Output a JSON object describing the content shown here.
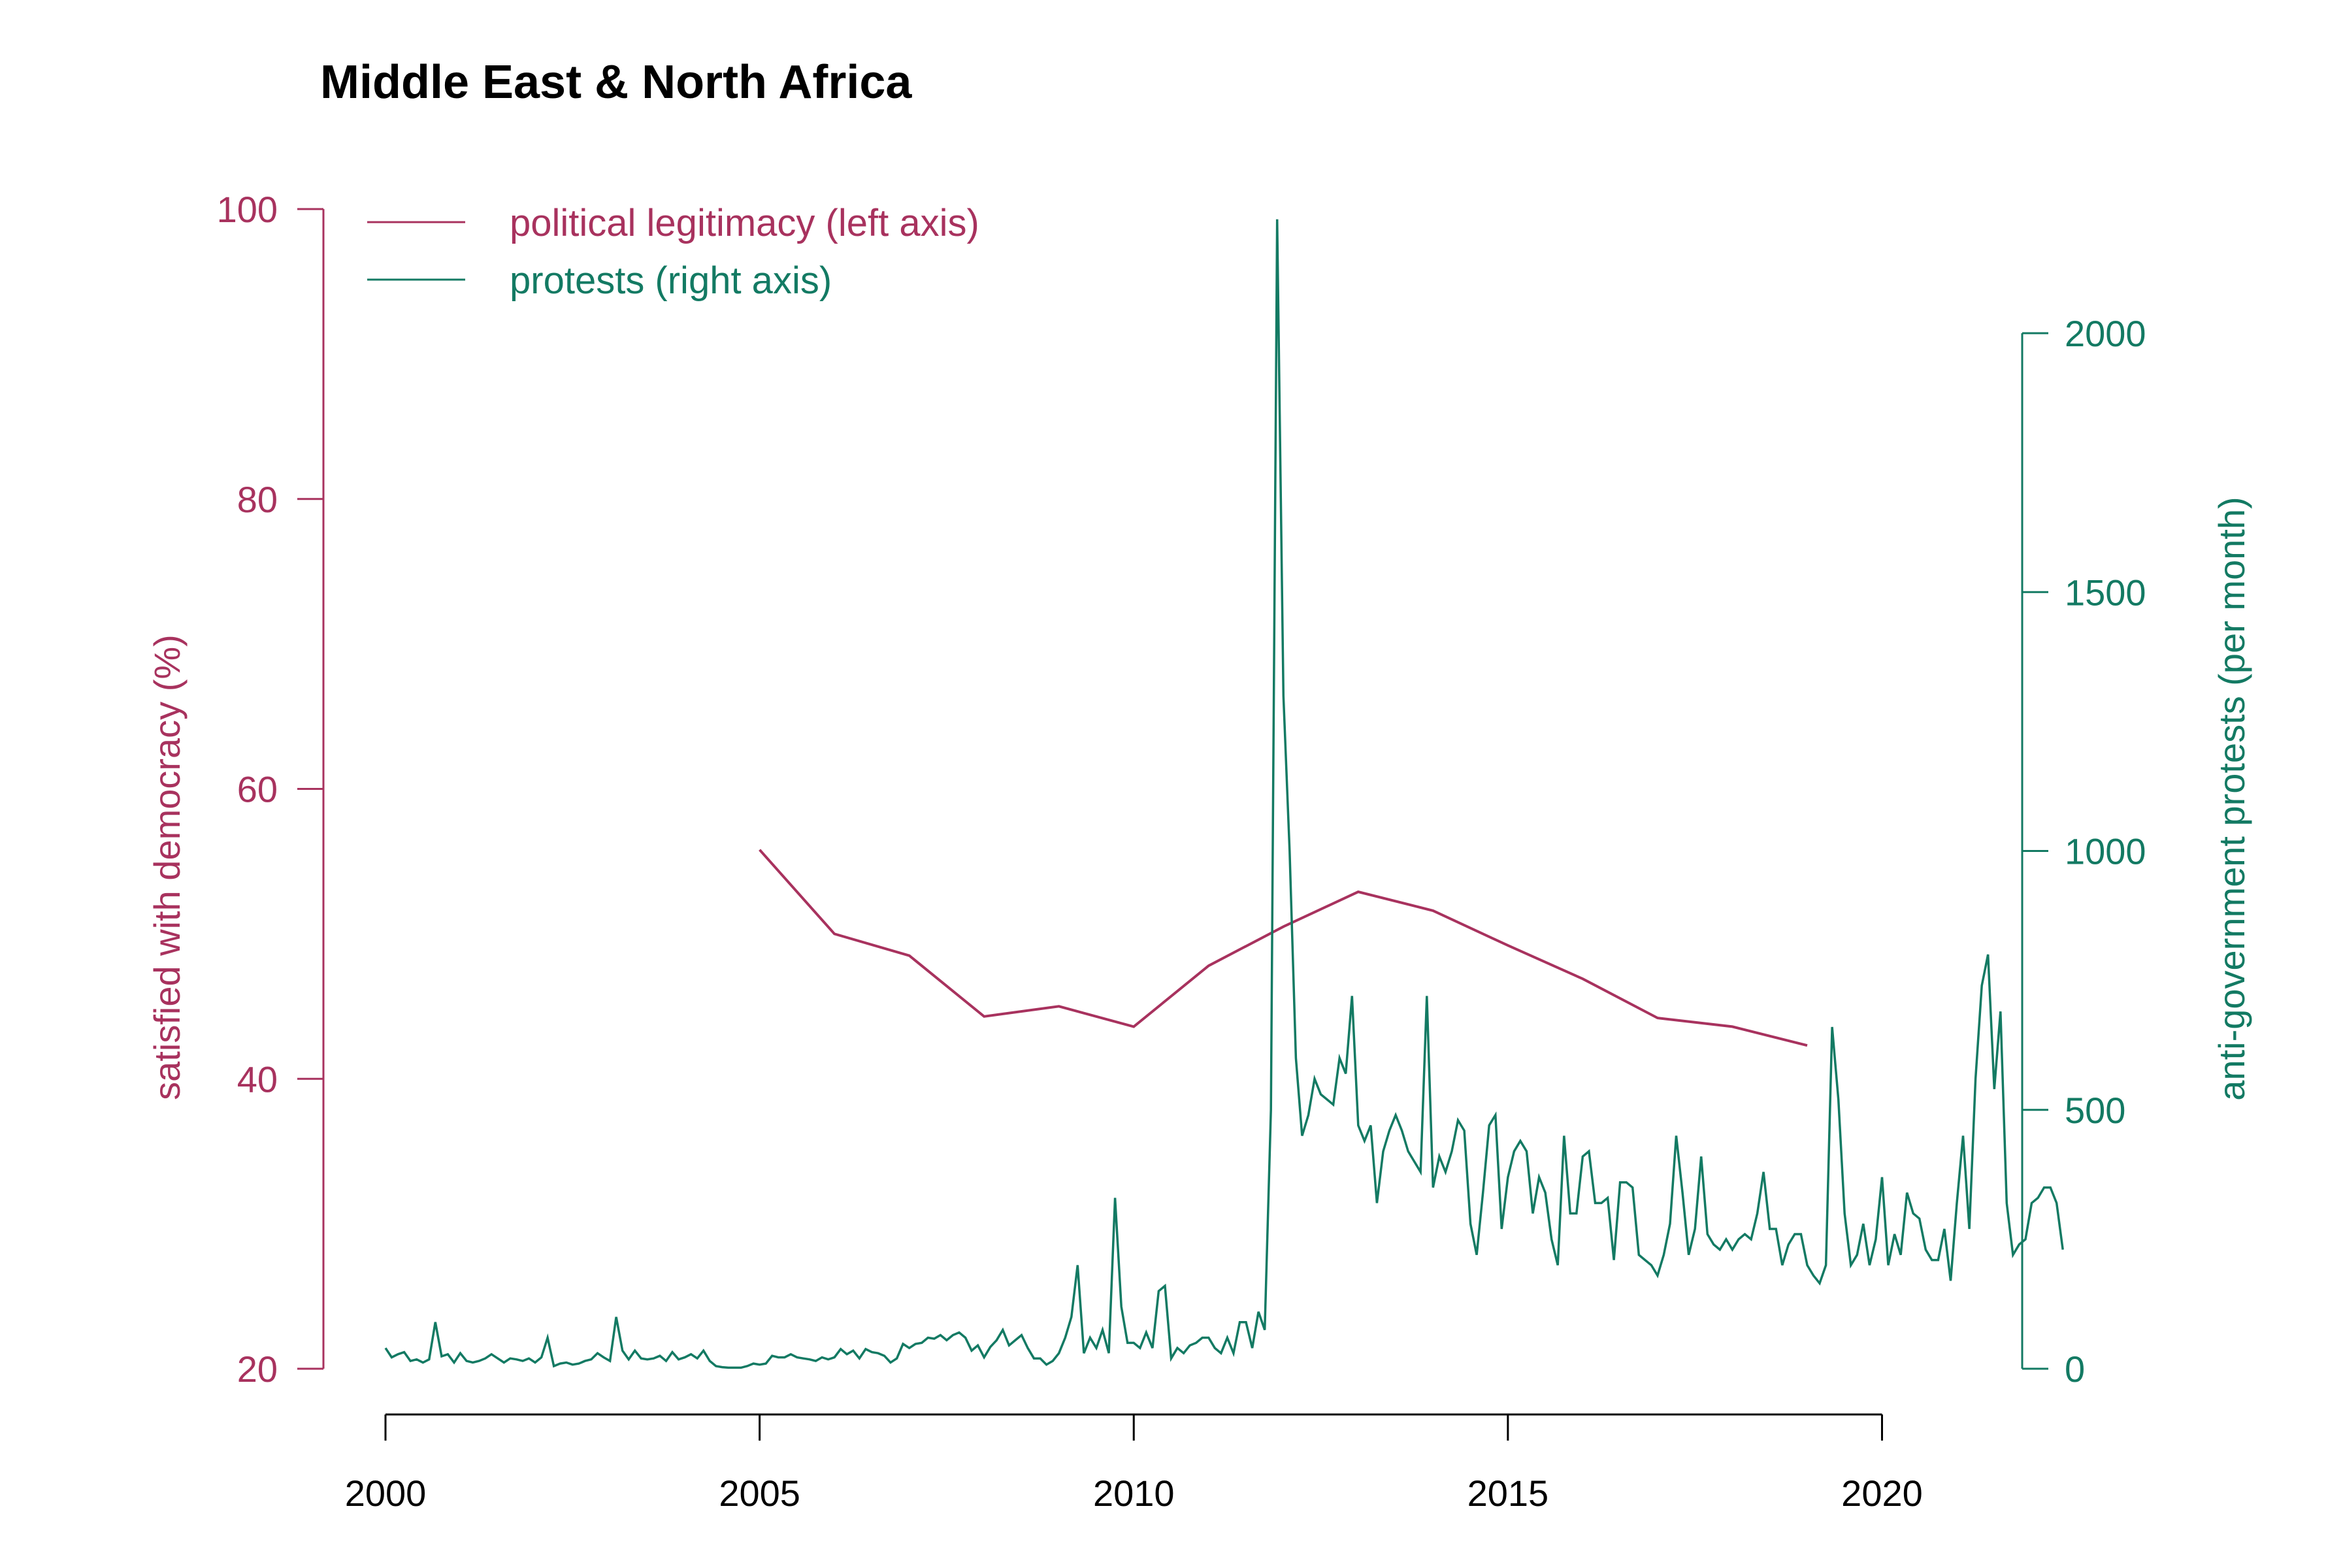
{
  "colors": {
    "legitimacy": "#A8325E",
    "protests": "#137A63",
    "axis": "#000000"
  },
  "chart_data": {
    "type": "line",
    "title": "Middle East & North Africa",
    "xlabel": "",
    "x_ticks": [
      "2000",
      "2005",
      "2010",
      "2015",
      "2020"
    ],
    "xlim": [
      2000,
      2021
    ],
    "left_axis": {
      "label": "satisfied with democracy (%)",
      "ticks": [
        "20",
        "40",
        "60",
        "80",
        "100"
      ],
      "ylim": [
        20,
        100
      ]
    },
    "right_axis": {
      "label": "anti-government protests (per month)",
      "ticks": [
        "0",
        "500",
        "1000",
        "1500",
        "2000"
      ],
      "ylim": [
        0,
        2000
      ]
    },
    "legend": {
      "position": "top-left",
      "entries": [
        "political legitimacy (left axis)",
        "protests (right axis)"
      ]
    },
    "series": [
      {
        "name": "political legitimacy (left axis)",
        "axis": "left",
        "x": [
          2005,
          2006,
          2007,
          2008,
          2009,
          2010,
          2011,
          2012,
          2013,
          2014,
          2015,
          2016,
          2017,
          2018,
          2019
        ],
        "values": [
          55.8,
          50.0,
          48.5,
          44.3,
          45.0,
          43.6,
          47.8,
          50.5,
          52.9,
          51.6,
          49.2,
          46.9,
          44.2,
          43.6,
          42.3
        ]
      },
      {
        "name": "protests (right axis)",
        "axis": "right",
        "start": 2000.0,
        "step_months": 1,
        "values": [
          40,
          22,
          28,
          32,
          15,
          18,
          12,
          18,
          90,
          24,
          28,
          12,
          30,
          15,
          12,
          15,
          20,
          28,
          20,
          12,
          20,
          18,
          15,
          20,
          12,
          22,
          60,
          5,
          10,
          12,
          8,
          10,
          15,
          18,
          30,
          22,
          15,
          100,
          35,
          18,
          35,
          20,
          18,
          20,
          25,
          15,
          32,
          18,
          22,
          28,
          20,
          35,
          15,
          5,
          3,
          2,
          2,
          2,
          5,
          10,
          8,
          10,
          25,
          22,
          22,
          28,
          22,
          20,
          18,
          15,
          22,
          18,
          22,
          38,
          28,
          35,
          20,
          38,
          32,
          30,
          25,
          12,
          20,
          48,
          40,
          48,
          50,
          60,
          58,
          65,
          55,
          65,
          70,
          60,
          35,
          45,
          22,
          42,
          55,
          75,
          45,
          55,
          65,
          40,
          20,
          20,
          8,
          15,
          30,
          60,
          100,
          200,
          30,
          60,
          40,
          75,
          30,
          330,
          120,
          50,
          50,
          40,
          70,
          40,
          150,
          160,
          20,
          40,
          30,
          45,
          50,
          60,
          60,
          40,
          30,
          60,
          30,
          90,
          90,
          40,
          110,
          75,
          500,
          2220,
          1300,
          1000,
          600,
          450,
          490,
          560,
          530,
          520,
          510,
          600,
          570,
          720,
          470,
          440,
          470,
          320,
          420,
          460,
          490,
          460,
          420,
          400,
          380,
          720,
          350,
          410,
          380,
          420,
          480,
          460,
          280,
          220,
          340,
          470,
          490,
          270,
          370,
          420,
          440,
          420,
          300,
          370,
          340,
          250,
          200,
          450,
          300,
          300,
          410,
          420,
          320,
          320,
          330,
          210,
          360,
          360,
          350,
          220,
          210,
          200,
          180,
          220,
          280,
          450,
          340,
          220,
          270,
          410,
          260,
          240,
          230,
          250,
          230,
          250,
          260,
          250,
          300,
          380,
          270,
          270,
          200,
          240,
          260,
          260,
          200,
          180,
          165,
          200,
          660,
          520,
          300,
          200,
          220,
          280,
          200,
          250,
          370,
          200,
          260,
          220,
          340,
          300,
          290,
          230,
          210,
          210,
          270,
          170,
          320,
          450,
          270,
          560,
          740,
          800,
          540,
          690,
          320,
          220,
          240,
          250,
          320,
          330,
          350,
          350,
          320,
          230
        ]
      }
    ]
  }
}
